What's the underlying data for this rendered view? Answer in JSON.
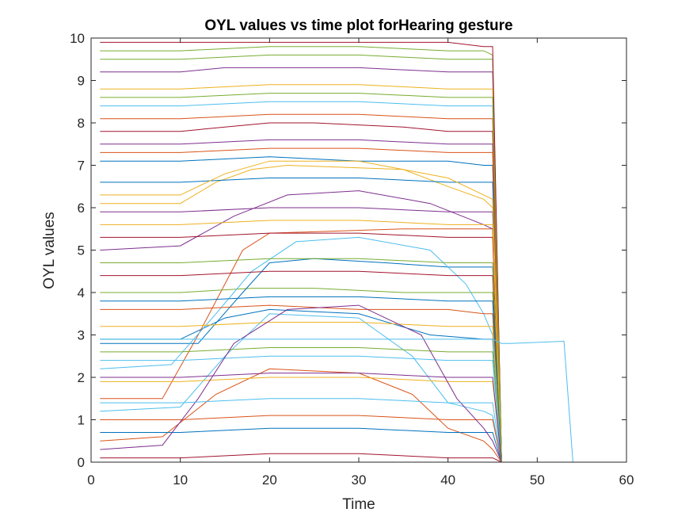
{
  "chart_data": {
    "type": "line",
    "title": "OYL values vs time plot forHearing gesture",
    "xlabel": "Time",
    "ylabel": "OYL values",
    "xlim": [
      0,
      60
    ],
    "ylim": [
      0,
      10
    ],
    "xticks": [
      "0",
      "10",
      "20",
      "30",
      "40",
      "50",
      "60"
    ],
    "yticks": [
      "0",
      "1",
      "2",
      "3",
      "4",
      "5",
      "6",
      "7",
      "8",
      "9",
      "10"
    ],
    "grid": false,
    "legend": "none",
    "series_colors": [
      "#0072BD",
      "#D95319",
      "#EDB120",
      "#7E2F8E",
      "#77AC30",
      "#4DBEEE",
      "#A2142F"
    ],
    "series": [
      {
        "x": [
          1,
          10,
          15,
          20,
          30,
          38,
          44,
          45,
          46
        ],
        "y": [
          2.9,
          2.9,
          3.4,
          3.6,
          3.5,
          3.0,
          2.9,
          2.9,
          0
        ]
      },
      {
        "x": [
          1,
          8,
          12,
          17,
          20,
          35,
          40,
          44,
          45,
          46
        ],
        "y": [
          1.5,
          1.5,
          3.0,
          5.0,
          5.4,
          5.5,
          5.5,
          5.5,
          5.5,
          0
        ]
      },
      {
        "x": [
          1,
          10,
          14,
          18,
          22,
          35,
          40,
          44,
          45,
          46
        ],
        "y": [
          6.1,
          6.1,
          6.6,
          6.9,
          7.0,
          6.9,
          6.5,
          6.2,
          6.0,
          0
        ]
      },
      {
        "x": [
          1,
          10,
          15,
          20,
          30,
          40,
          44,
          45,
          46
        ],
        "y": [
          9.2,
          9.2,
          9.3,
          9.3,
          9.3,
          9.2,
          9.2,
          9.2,
          0
        ]
      },
      {
        "x": [
          1,
          10,
          18,
          25,
          35,
          40,
          44,
          45,
          46
        ],
        "y": [
          4.0,
          4.0,
          4.1,
          4.1,
          4.0,
          4.0,
          4.0,
          4.0,
          0
        ]
      },
      {
        "x": [
          1,
          10,
          15,
          20,
          30,
          36,
          40,
          44,
          45,
          46
        ],
        "y": [
          1.2,
          1.3,
          2.5,
          3.5,
          3.4,
          2.5,
          1.4,
          1.2,
          1.1,
          0
        ]
      },
      {
        "x": [
          1,
          10,
          15,
          20,
          25,
          35,
          40,
          44,
          45,
          46
        ],
        "y": [
          7.8,
          7.8,
          7.9,
          8.0,
          8.0,
          7.9,
          7.8,
          7.8,
          7.8,
          0
        ]
      },
      {
        "x": [
          1,
          12,
          17,
          20,
          25,
          33,
          40,
          44,
          45,
          46
        ],
        "y": [
          2.8,
          2.8,
          4.0,
          4.7,
          4.8,
          4.7,
          4.6,
          4.6,
          4.6,
          0
        ]
      },
      {
        "x": [
          1,
          8,
          14,
          20,
          30,
          36,
          40,
          44,
          45,
          46
        ],
        "y": [
          0.5,
          0.6,
          1.6,
          2.2,
          2.1,
          1.6,
          0.8,
          0.5,
          0.3,
          0
        ]
      },
      {
        "x": [
          1,
          10,
          20,
          30,
          40,
          44,
          45,
          46
        ],
        "y": [
          8.8,
          8.8,
          8.9,
          8.9,
          8.8,
          8.8,
          8.8,
          0
        ]
      },
      {
        "x": [
          1,
          10,
          16,
          22,
          30,
          38,
          44,
          45,
          46
        ],
        "y": [
          5.0,
          5.1,
          5.8,
          6.3,
          6.4,
          6.1,
          5.6,
          5.5,
          0
        ]
      },
      {
        "x": [
          1,
          10,
          20,
          30,
          40,
          44,
          45,
          46
        ],
        "y": [
          9.7,
          9.7,
          9.8,
          9.8,
          9.7,
          9.7,
          9.6,
          0
        ]
      },
      {
        "x": [
          1,
          9,
          14,
          18,
          23,
          30,
          38,
          42,
          44,
          45,
          46
        ],
        "y": [
          2.2,
          2.3,
          3.5,
          4.5,
          5.2,
          5.3,
          5.0,
          4.2,
          3.5,
          3.0,
          0
        ]
      },
      {
        "x": [
          1,
          10,
          20,
          30,
          40,
          45,
          46
        ],
        "y": [
          0.1,
          0.1,
          0.2,
          0.2,
          0.1,
          0.1,
          0
        ]
      },
      {
        "x": [
          1,
          10,
          20,
          30,
          40,
          44,
          45,
          46
        ],
        "y": [
          7.1,
          7.1,
          7.2,
          7.1,
          7.1,
          7.0,
          7.0,
          0
        ]
      },
      {
        "x": [
          1,
          10,
          20,
          30,
          40,
          44,
          45,
          46
        ],
        "y": [
          3.6,
          3.6,
          3.7,
          3.6,
          3.6,
          3.5,
          3.5,
          0
        ]
      },
      {
        "x": [
          1,
          10,
          20,
          30,
          40,
          44,
          45,
          46
        ],
        "y": [
          1.9,
          1.9,
          2.0,
          2.0,
          1.9,
          1.9,
          1.9,
          0
        ]
      },
      {
        "x": [
          1,
          10,
          20,
          30,
          40,
          44,
          45,
          46
        ],
        "y": [
          5.9,
          5.9,
          6.0,
          6.0,
          5.9,
          5.9,
          5.9,
          0
        ]
      },
      {
        "x": [
          1,
          10,
          20,
          30,
          40,
          44,
          45,
          46
        ],
        "y": [
          2.6,
          2.6,
          2.7,
          2.7,
          2.6,
          2.6,
          2.6,
          0
        ]
      },
      {
        "x": [
          1,
          10,
          20,
          30,
          40,
          44,
          45,
          46
        ],
        "y": [
          8.4,
          8.4,
          8.5,
          8.5,
          8.4,
          8.4,
          8.4,
          0
        ]
      },
      {
        "x": [
          1,
          10,
          20,
          30,
          40,
          44,
          45,
          46
        ],
        "y": [
          4.4,
          4.4,
          4.5,
          4.5,
          4.4,
          4.4,
          4.4,
          0
        ]
      },
      {
        "x": [
          1,
          10,
          20,
          30,
          40,
          44,
          45,
          46
        ],
        "y": [
          6.6,
          6.6,
          6.7,
          6.7,
          6.6,
          6.6,
          6.6,
          0
        ]
      },
      {
        "x": [
          1,
          10,
          20,
          30,
          40,
          44,
          45,
          46
        ],
        "y": [
          1.0,
          1.0,
          1.1,
          1.1,
          1.0,
          1.0,
          1.0,
          0
        ]
      },
      {
        "x": [
          1,
          10,
          20,
          30,
          40,
          44,
          45,
          46
        ],
        "y": [
          3.2,
          3.2,
          3.3,
          3.3,
          3.2,
          3.2,
          3.2,
          0
        ]
      },
      {
        "x": [
          1,
          10,
          20,
          30,
          40,
          44,
          45,
          46
        ],
        "y": [
          7.5,
          7.5,
          7.6,
          7.6,
          7.5,
          7.5,
          7.5,
          0
        ]
      },
      {
        "x": [
          1,
          10,
          20,
          30,
          40,
          44,
          45,
          46
        ],
        "y": [
          9.5,
          9.5,
          9.6,
          9.6,
          9.5,
          9.5,
          9.5,
          0
        ]
      },
      {
        "x": [
          1,
          10,
          20,
          30,
          40,
          44,
          45,
          46
        ],
        "y": [
          2.4,
          2.4,
          2.5,
          2.5,
          2.4,
          2.4,
          2.4,
          0
        ]
      },
      {
        "x": [
          1,
          10,
          20,
          30,
          40,
          44,
          45,
          46
        ],
        "y": [
          5.3,
          5.3,
          5.4,
          5.4,
          5.3,
          5.3,
          5.3,
          0
        ]
      },
      {
        "x": [
          1,
          10,
          20,
          30,
          40,
          44,
          45,
          46
        ],
        "y": [
          0.7,
          0.7,
          0.8,
          0.8,
          0.7,
          0.7,
          0.7,
          0
        ]
      },
      {
        "x": [
          1,
          10,
          20,
          30,
          40,
          44,
          45,
          46
        ],
        "y": [
          8.1,
          8.1,
          8.2,
          8.2,
          8.1,
          8.1,
          8.1,
          0
        ]
      },
      {
        "x": [
          1,
          10,
          15,
          20,
          30,
          40,
          44,
          45,
          46
        ],
        "y": [
          6.3,
          6.3,
          6.8,
          7.1,
          7.1,
          6.7,
          6.3,
          6.2,
          0
        ]
      },
      {
        "x": [
          1,
          8,
          12,
          16,
          22,
          30,
          37,
          41,
          44,
          45,
          46
        ],
        "y": [
          0.3,
          0.4,
          1.5,
          2.8,
          3.6,
          3.7,
          3.0,
          1.5,
          0.8,
          0.5,
          0
        ]
      },
      {
        "x": [
          1,
          10,
          20,
          30,
          40,
          44,
          45,
          46
        ],
        "y": [
          4.7,
          4.7,
          4.8,
          4.8,
          4.7,
          4.7,
          4.7,
          0
        ]
      },
      {
        "x": [
          1,
          10,
          20,
          30,
          40,
          44,
          45,
          46
        ],
        "y": [
          1.4,
          1.4,
          1.5,
          1.5,
          1.4,
          1.4,
          1.4,
          0
        ]
      },
      {
        "x": [
          1,
          10,
          20,
          30,
          40,
          44,
          45,
          46
        ],
        "y": [
          9.9,
          9.9,
          9.9,
          9.9,
          9.9,
          9.8,
          9.8,
          0
        ]
      },
      {
        "x": [
          1,
          10,
          20,
          30,
          40,
          44,
          45,
          46
        ],
        "y": [
          3.8,
          3.8,
          3.9,
          3.9,
          3.8,
          3.8,
          3.8,
          0
        ]
      },
      {
        "x": [
          1,
          10,
          20,
          30,
          40,
          44,
          45,
          46
        ],
        "y": [
          7.3,
          7.3,
          7.4,
          7.4,
          7.3,
          7.3,
          7.3,
          0
        ]
      },
      {
        "x": [
          1,
          10,
          20,
          30,
          40,
          44,
          45,
          46
        ],
        "y": [
          5.6,
          5.6,
          5.7,
          5.7,
          5.6,
          5.6,
          5.6,
          0
        ]
      },
      {
        "x": [
          1,
          10,
          20,
          30,
          40,
          44,
          45,
          46
        ],
        "y": [
          2.0,
          2.0,
          2.1,
          2.1,
          2.0,
          2.0,
          2.0,
          0
        ]
      },
      {
        "x": [
          1,
          10,
          20,
          30,
          40,
          44,
          45,
          46
        ],
        "y": [
          8.6,
          8.6,
          8.7,
          8.7,
          8.6,
          8.6,
          8.6,
          0
        ]
      },
      {
        "x": [
          1,
          10,
          20,
          30,
          40,
          44,
          45,
          46,
          47,
          53,
          54,
          55
        ],
        "y": [
          2.9,
          2.9,
          2.9,
          2.9,
          2.9,
          2.9,
          2.9,
          2.8,
          2.8,
          2.85,
          0,
          0
        ]
      },
      {
        "x": [
          1,
          46,
          47,
          55
        ],
        "y": [
          0,
          0,
          0,
          0
        ]
      }
    ]
  }
}
